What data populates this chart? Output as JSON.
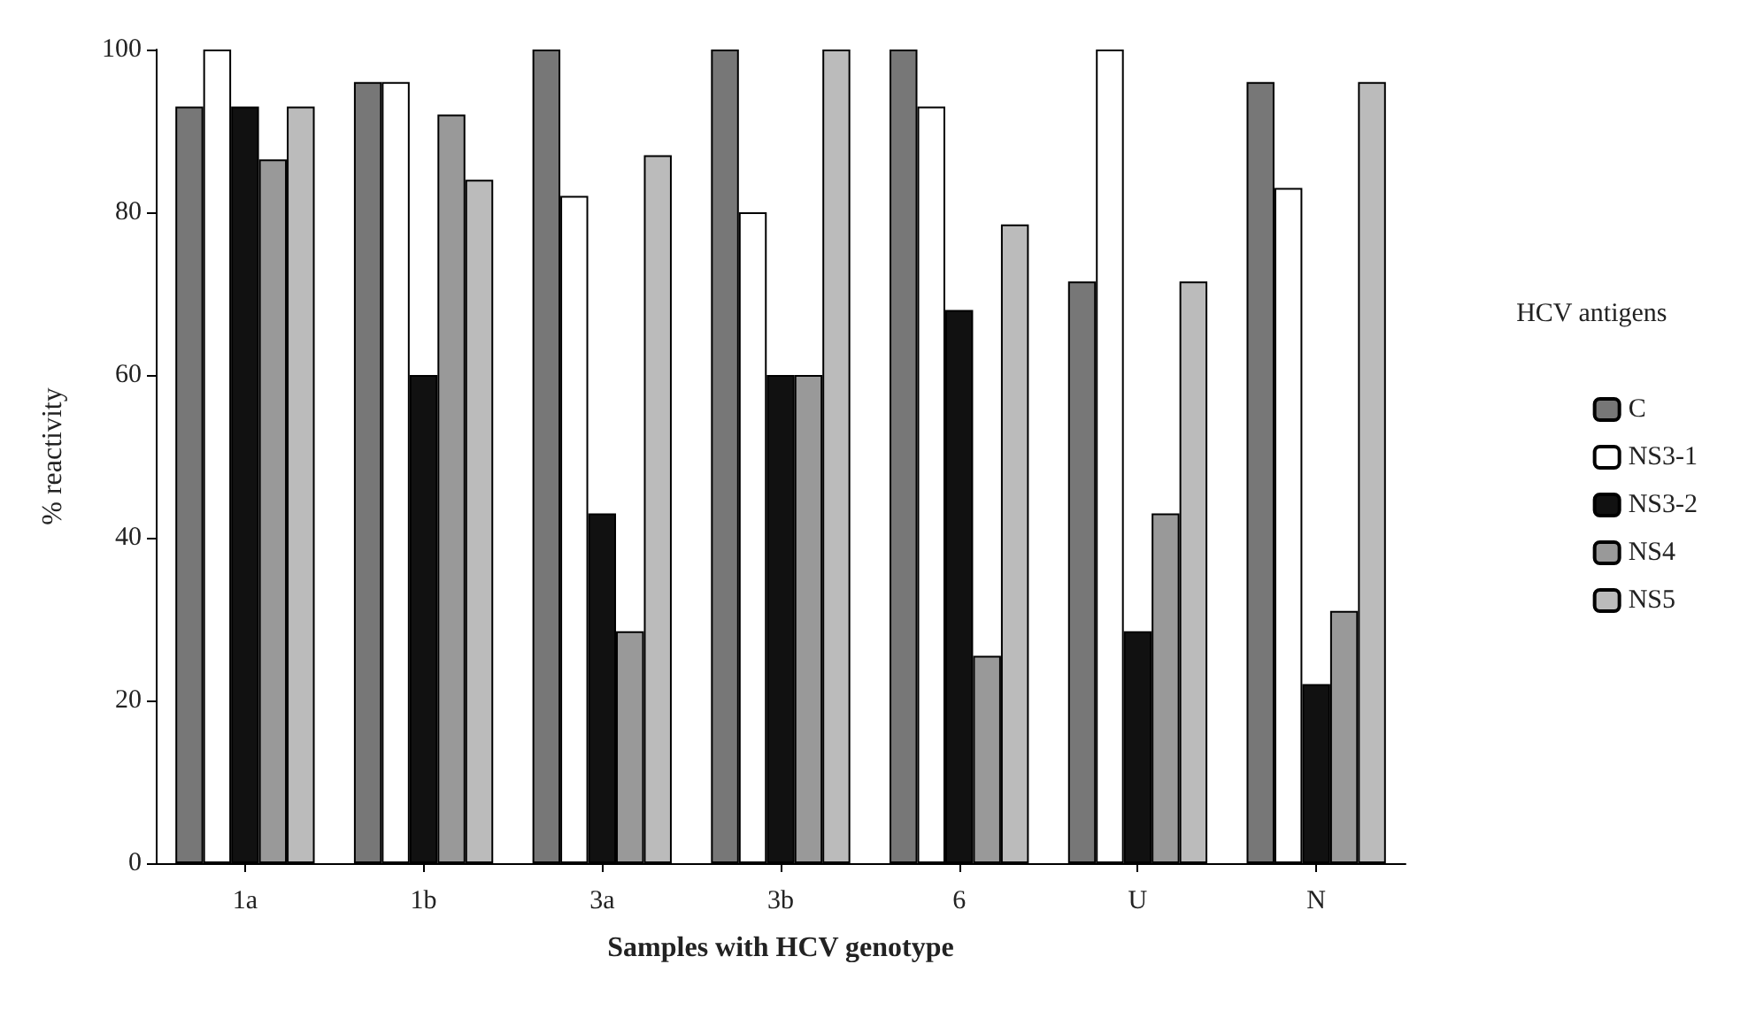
{
  "chart_data": {
    "type": "bar",
    "xlabel": "Samples with HCV genotype",
    "ylabel": "% reactivity",
    "legend_title": "HCV antigens",
    "categories": [
      "1a",
      "1b",
      "3a",
      "3b",
      "6",
      "U",
      "N"
    ],
    "series": [
      {
        "name": "C",
        "color": "#777777",
        "values": [
          93,
          96,
          100,
          100,
          100,
          71.5,
          96
        ]
      },
      {
        "name": "NS3-1",
        "color": "#ffffff",
        "values": [
          100,
          96,
          82,
          80,
          93,
          100,
          83
        ]
      },
      {
        "name": "NS3-2",
        "color": "#111111",
        "values": [
          93,
          60,
          43,
          60,
          68,
          28.5,
          22
        ]
      },
      {
        "name": "NS4",
        "color": "#999999",
        "values": [
          86.5,
          92,
          28.5,
          60,
          25.5,
          43,
          31
        ]
      },
      {
        "name": "NS5",
        "color": "#bbbbbb",
        "values": [
          93,
          84,
          87,
          100,
          78.5,
          71.5,
          96
        ]
      }
    ],
    "ylim": [
      0,
      100
    ],
    "yticks": [
      0,
      20,
      40,
      60,
      80,
      100
    ],
    "grid": false,
    "legend": "right"
  }
}
